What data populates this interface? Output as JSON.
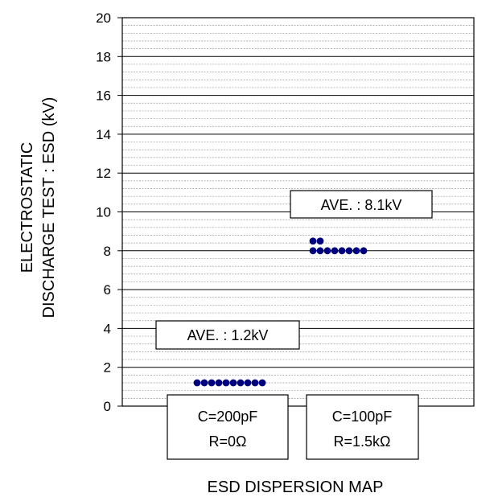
{
  "chart_data": {
    "type": "scatter",
    "title": "",
    "xlabel": "ESD DISPERSION MAP",
    "ylabel_lines": [
      "ELECTROSTATIC",
      "DISCHARGE TEST : ESD (kV)"
    ],
    "ylim": [
      0,
      20
    ],
    "yticks": [
      "0",
      "2",
      "4",
      "6",
      "8",
      "10",
      "12",
      "14",
      "16",
      "18",
      "20"
    ],
    "grid": {
      "major_step": 2,
      "minor_step": 0.4
    },
    "marker_color": "#00007f",
    "groups": [
      {
        "category_lines": [
          "C=200pF",
          "R=0Ω"
        ],
        "average_label": "AVE. : 1.2kV",
        "average_value": 1.2,
        "points": [
          [
            1,
            1.2
          ],
          [
            2,
            1.2
          ],
          [
            3,
            1.2
          ],
          [
            4,
            1.2
          ],
          [
            5,
            1.2
          ],
          [
            6,
            1.2
          ],
          [
            7,
            1.2
          ],
          [
            8,
            1.2
          ],
          [
            9,
            1.2
          ],
          [
            10,
            1.2
          ]
        ]
      },
      {
        "category_lines": [
          "C=100pF",
          "R=1.5kΩ"
        ],
        "average_label": "AVE. : 8.1kV",
        "average_value": 8.1,
        "points": [
          [
            1,
            8.5
          ],
          [
            2,
            8.5
          ],
          [
            1,
            8.0
          ],
          [
            2,
            8.0
          ],
          [
            3,
            8.0
          ],
          [
            4,
            8.0
          ],
          [
            5,
            8.0
          ],
          [
            6,
            8.0
          ],
          [
            7,
            8.0
          ],
          [
            8,
            8.0
          ]
        ]
      }
    ]
  }
}
